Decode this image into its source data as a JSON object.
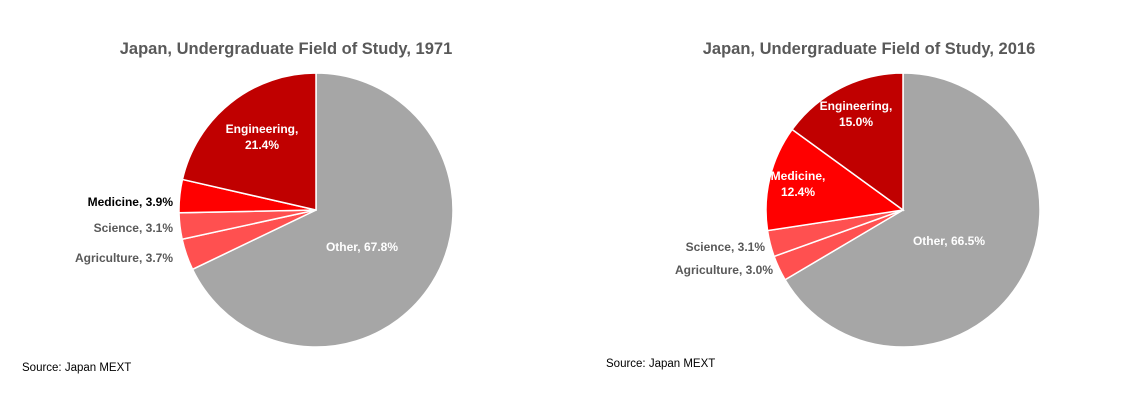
{
  "colors": {
    "engineering": "#C00000",
    "medicine": "#FF0000",
    "science": "#FF5050",
    "agriculture": "#FF5050",
    "other": "#A6A6A6",
    "title": "#595959"
  },
  "chart_data": [
    {
      "type": "pie",
      "title": "Japan, Undergraduate Field of Study, 1971",
      "source": "Source: Japan MEXT",
      "slices": [
        {
          "name": "Other",
          "value": 67.8,
          "label": "Other, 67.8%",
          "color": "#A6A6A6",
          "label_position": "inside"
        },
        {
          "name": "Agriculture",
          "value": 3.7,
          "label": "Agriculture, 3.7%",
          "color": "#FF5050",
          "label_position": "outside"
        },
        {
          "name": "Science",
          "value": 3.1,
          "label": "Science, 3.1%",
          "color": "#FF5050",
          "label_position": "outside"
        },
        {
          "name": "Medicine",
          "value": 3.9,
          "label": "Medicine, 3.9%",
          "color": "#FF0000",
          "label_position": "outside"
        },
        {
          "name": "Engineering",
          "value": 21.4,
          "label": "Engineering, 21.4%",
          "label_lines": [
            "Engineering,",
            "21.4%"
          ],
          "color": "#C00000",
          "label_position": "inside"
        }
      ]
    },
    {
      "type": "pie",
      "title": "Japan, Undergraduate Field of Study, 2016",
      "source": "Source: Japan MEXT",
      "slices": [
        {
          "name": "Other",
          "value": 66.5,
          "label": "Other, 66.5%",
          "color": "#A6A6A6",
          "label_position": "inside"
        },
        {
          "name": "Agriculture",
          "value": 3.0,
          "label": "Agriculture, 3.0%",
          "color": "#FF5050",
          "label_position": "outside"
        },
        {
          "name": "Science",
          "value": 3.1,
          "label": "Science, 3.1%",
          "color": "#FF5050",
          "label_position": "outside"
        },
        {
          "name": "Medicine",
          "value": 12.4,
          "label": "Medicine, 12.4%",
          "label_lines": [
            "Medicine,",
            "12.4%"
          ],
          "color": "#FF0000",
          "label_position": "inside"
        },
        {
          "name": "Engineering",
          "value": 15.0,
          "label": "Engineering, 15.0%",
          "label_lines": [
            "Engineering,",
            "15.0%"
          ],
          "color": "#C00000",
          "label_position": "inside"
        }
      ]
    }
  ]
}
